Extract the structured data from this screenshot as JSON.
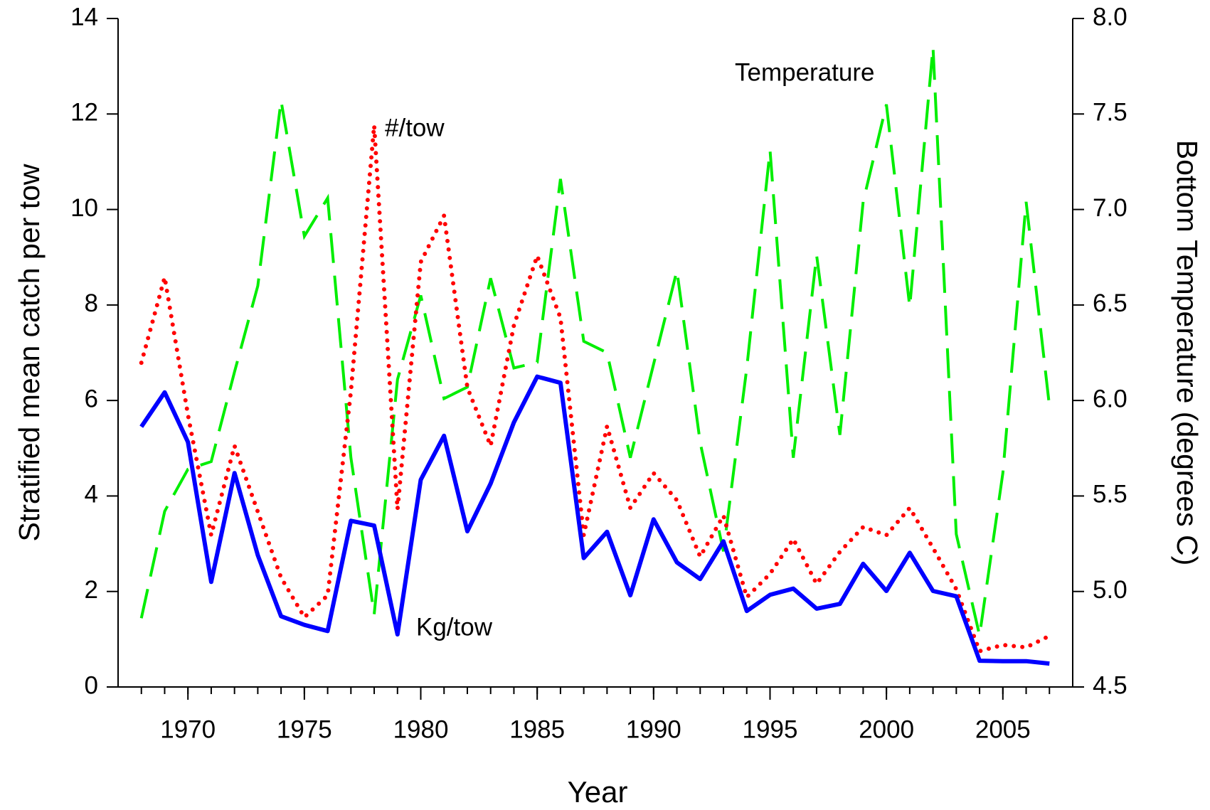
{
  "chart_data": {
    "type": "line",
    "xlabel": "Year",
    "ylabel": "Stratified mean catch per tow",
    "y2label": "Bottom Temperature (degrees C)",
    "annotations": [
      "Temperature",
      "#/tow",
      "Kg/tow"
    ],
    "x": [
      1968,
      1969,
      1970,
      1971,
      1972,
      1973,
      1974,
      1975,
      1976,
      1977,
      1978,
      1979,
      1980,
      1981,
      1982,
      1983,
      1984,
      1985,
      1986,
      1987,
      1988,
      1989,
      1990,
      1991,
      1992,
      1993,
      1994,
      1995,
      1996,
      1997,
      1998,
      1999,
      2000,
      2001,
      2002,
      2003,
      2004,
      2005,
      2006,
      2007
    ],
    "series": [
      {
        "name": "Kg/tow",
        "color": "#0000ff",
        "style": "solid",
        "axis": "y",
        "values": [
          5.45,
          6.17,
          5.13,
          2.2,
          4.48,
          2.76,
          1.48,
          1.3,
          1.17,
          3.48,
          3.38,
          1.1,
          4.34,
          5.26,
          3.26,
          4.26,
          5.54,
          6.5,
          6.37,
          2.7,
          3.25,
          1.92,
          3.51,
          2.61,
          2.26,
          3.05,
          1.59,
          1.93,
          2.06,
          1.64,
          1.74,
          2.58,
          2.01,
          2.81,
          2.01,
          1.9,
          0.55,
          0.54,
          0.54,
          0.49
        ]
      },
      {
        "name": "#/tow",
        "color": "#ff0000",
        "style": "dotted",
        "axis": "y",
        "values": [
          6.79,
          8.58,
          5.7,
          3.18,
          5.05,
          3.67,
          2.29,
          1.46,
          1.92,
          6.19,
          11.76,
          3.72,
          8.9,
          9.87,
          6.27,
          5.05,
          7.57,
          9.03,
          7.73,
          3.18,
          5.46,
          3.75,
          4.48,
          3.91,
          2.73,
          3.59,
          1.88,
          2.37,
          3.1,
          2.16,
          2.83,
          3.35,
          3.18,
          3.75,
          2.91,
          2.05,
          0.75,
          0.88,
          0.83,
          1.07
        ]
      },
      {
        "name": "Temperature",
        "color": "#00ee00",
        "style": "dashed",
        "axis": "y2",
        "values": [
          4.86,
          5.42,
          5.64,
          5.68,
          6.15,
          6.6,
          7.57,
          6.86,
          7.06,
          5.7,
          4.88,
          6.11,
          6.55,
          6.01,
          6.07,
          6.64,
          6.17,
          6.2,
          7.16,
          6.31,
          6.25,
          5.7,
          6.19,
          6.68,
          5.78,
          5.21,
          6.17,
          7.31,
          5.7,
          6.76,
          5.82,
          7.04,
          7.55,
          6.49,
          7.85,
          5.3,
          4.77,
          5.62,
          7.04,
          5.97
        ]
      }
    ],
    "xlim": [
      1967,
      2008
    ],
    "xticks": [
      1970,
      1975,
      1980,
      1985,
      1990,
      1995,
      2000,
      2005
    ],
    "xminorticks": [
      1968,
      1969,
      1970,
      1971,
      1972,
      1973,
      1974,
      1975,
      1976,
      1977,
      1978,
      1979,
      1980,
      1981,
      1982,
      1983,
      1984,
      1985,
      1986,
      1987,
      1988,
      1989,
      1990,
      1991,
      1992,
      1993,
      1994,
      1995,
      1996,
      1997,
      1998,
      1999,
      2000,
      2001,
      2002,
      2003,
      2004,
      2005,
      2006,
      2007
    ],
    "ylim": [
      0,
      14
    ],
    "yticks": [
      0,
      2,
      4,
      6,
      8,
      10,
      12,
      14
    ],
    "y2lim": [
      4.5,
      8.0
    ],
    "y2ticks": [
      4.5,
      {
        "value": 5,
        "label": "5.0"
      },
      5.5,
      {
        "value": 6,
        "label": "6.0"
      },
      6.5,
      {
        "value": 7,
        "label": "7.0"
      },
      7.5,
      {
        "value": 8,
        "label": "8.0"
      }
    ],
    "grid": false
  }
}
